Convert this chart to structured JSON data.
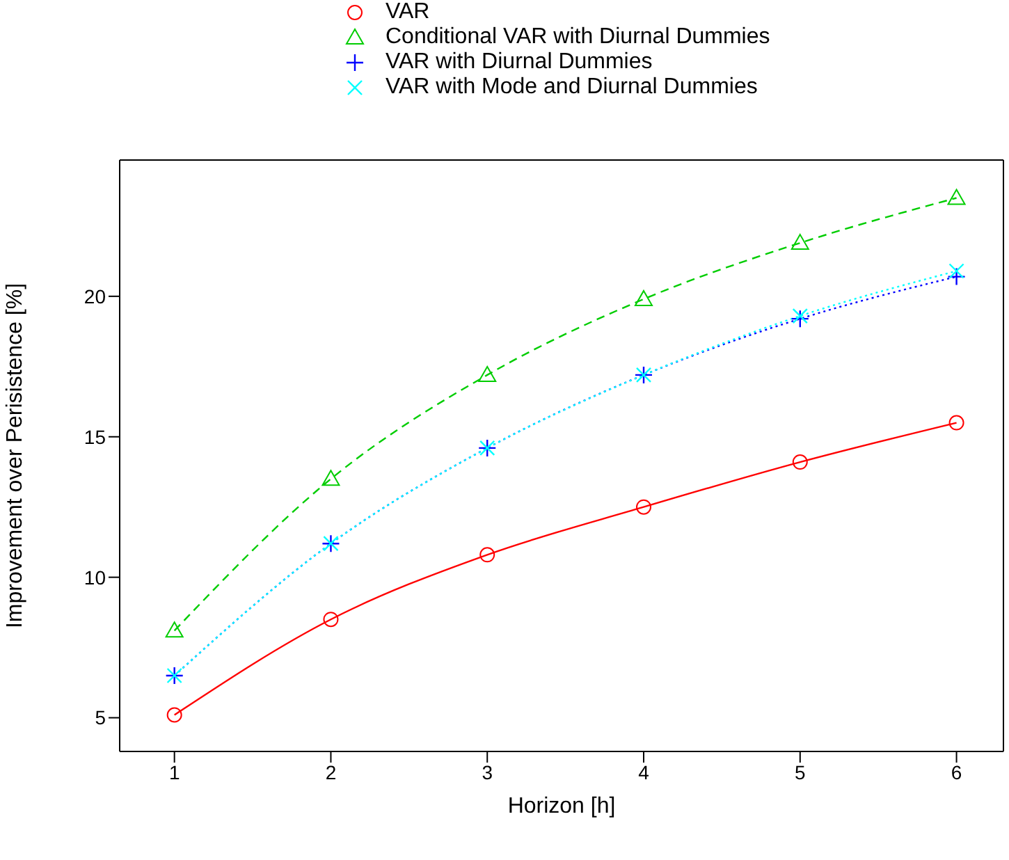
{
  "chart_data": {
    "type": "line",
    "xlabel": "Horizon [h]",
    "ylabel": "Improvement over Perisistence [%]",
    "x": [
      1,
      2,
      3,
      4,
      5,
      6
    ],
    "series": [
      {
        "name": "VAR",
        "color": "#ff0000",
        "marker": "circle",
        "line_style": "solid",
        "values": [
          5.1,
          8.5,
          10.8,
          12.5,
          14.1,
          15.5
        ]
      },
      {
        "name": "Conditional VAR with Diurnal Dummies",
        "color": "#00cd00",
        "marker": "triangle",
        "line_style": "dashed",
        "values": [
          8.1,
          13.5,
          17.2,
          19.9,
          21.9,
          23.5
        ]
      },
      {
        "name": "VAR with Diurnal Dummies",
        "color": "#0000ff",
        "marker": "plus",
        "line_style": "dotted",
        "values": [
          6.5,
          11.2,
          14.6,
          17.2,
          19.2,
          20.7
        ]
      },
      {
        "name": "VAR with Mode and Diurnal Dummies",
        "color": "#00ffff",
        "marker": "cross",
        "line_style": "dotted",
        "values": [
          6.5,
          11.2,
          14.6,
          17.2,
          19.3,
          20.9
        ]
      }
    ],
    "xlim": [
      0.65,
      6.3
    ],
    "xticks": [
      1,
      2,
      3,
      4,
      5,
      6
    ],
    "ylim": [
      3.8,
      24.85
    ],
    "yticks": [
      5,
      10,
      15,
      20
    ],
    "legend": "top"
  }
}
